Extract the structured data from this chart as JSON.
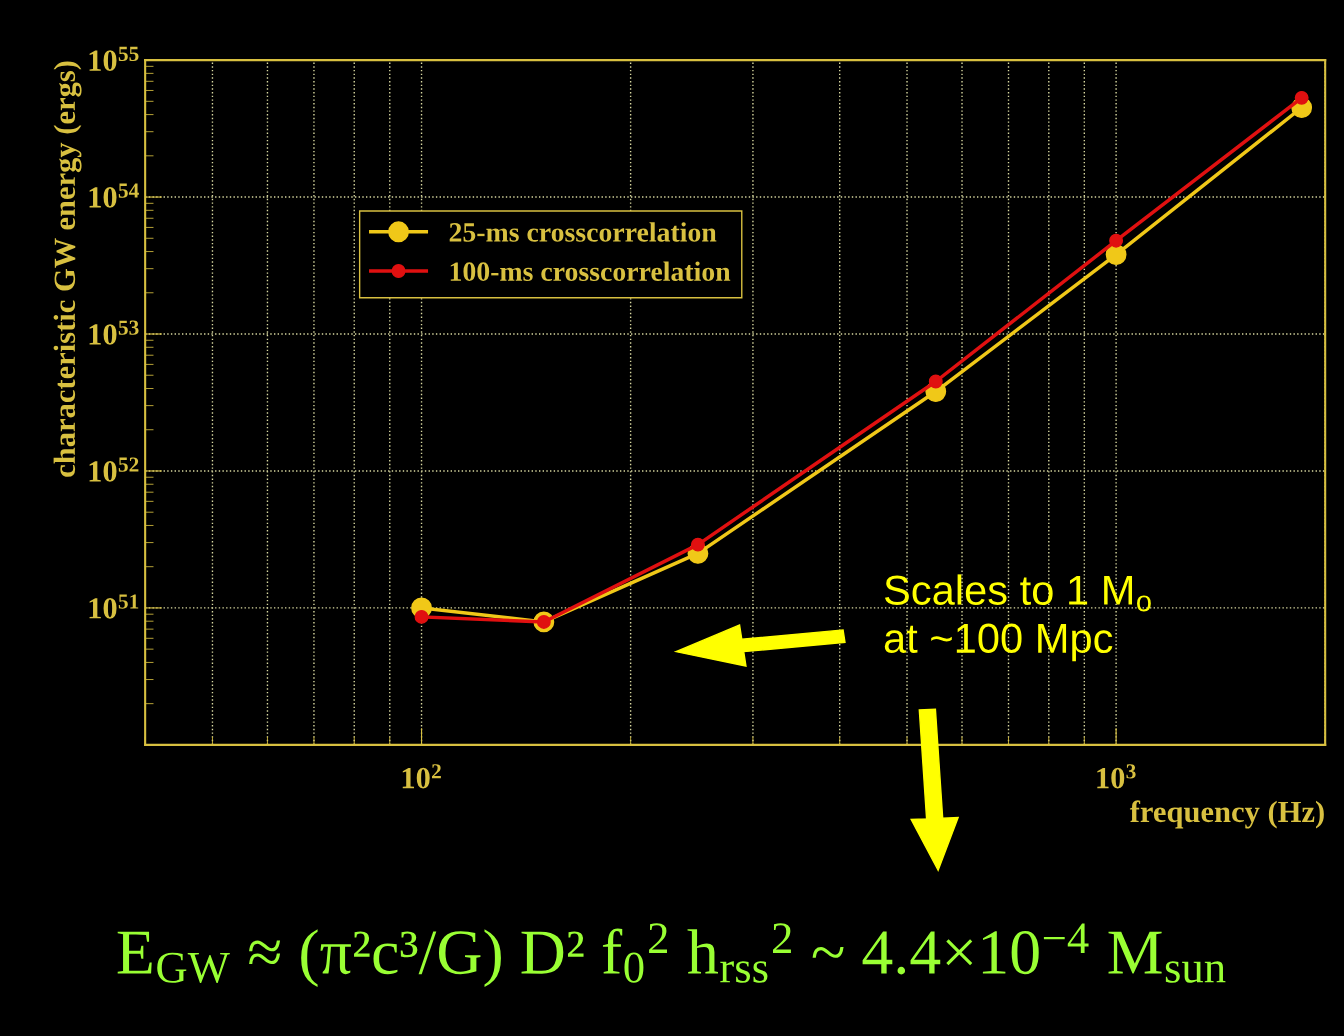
{
  "chart_data": {
    "type": "line",
    "xlabel": "frequency (Hz)",
    "ylabel": "characteristic GW energy (ergs)",
    "log": "xy",
    "xlim": [
      40,
      2000
    ],
    "xticks": [
      {
        "value": 100,
        "label": "10$^{2}$"
      },
      {
        "value": 1000,
        "label": "10$^{3}$"
      }
    ],
    "ylim": [
      1e+50,
      1e+55
    ],
    "yticks": [
      {
        "value": 1e+51,
        "label": "10$^{51}$"
      },
      {
        "value": 1e+52,
        "label": "10$^{52}$"
      },
      {
        "value": 1e+53,
        "label": "10$^{53}$"
      },
      {
        "value": 1e+54,
        "label": "10$^{54}$"
      },
      {
        "value": 1e+55,
        "label": "10$^{55}$"
      }
    ],
    "x": [
      100,
      150,
      250,
      550,
      1000,
      1850
    ],
    "series": [
      {
        "name": "25-ms crosscorrelation",
        "color": "#f0c818",
        "values": [
          1e+51,
          7.9e+50,
          2.5e+51,
          3.8e+52,
          3.8e+53,
          4.5e+54
        ]
      },
      {
        "name": "100-ms crosscorrelation",
        "color": "#e01010",
        "values": [
          8.6e+50,
          7.9e+50,
          2.9e+51,
          4.5e+52,
          4.8e+53,
          5.3e+54
        ]
      }
    ],
    "marker": "circle",
    "line_style": "solid",
    "grid": true,
    "legend": "top left",
    "annotations": [
      "Scales to 1 M$_{o}$\nat ~100 Mpc",
      "E$_{GW}$ ≈ (π²c³/G) D² f$_{0}$$^{2}$ h$_{rss}$$^{2}$ ~ 4.4×10$^{−4}$ M$_{sun}$"
    ]
  }
}
